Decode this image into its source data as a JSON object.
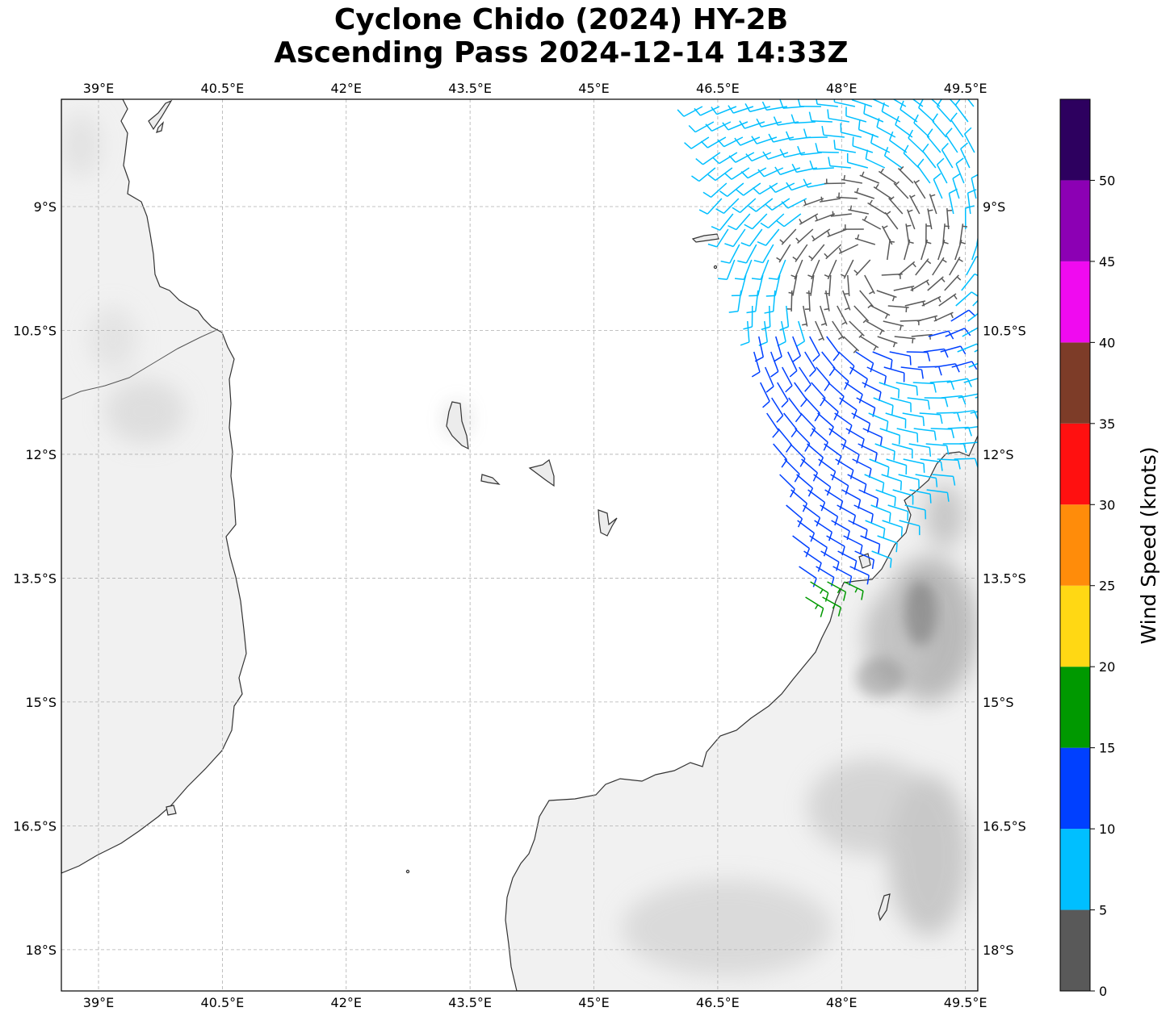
{
  "title": {
    "line1": "Cyclone Chido (2024) HY-2B",
    "line2": "Ascending Pass 2024-12-14 14:33Z"
  },
  "map": {
    "lon_range": [
      38.55,
      49.65
    ],
    "lat_range": [
      -18.5,
      -7.7
    ],
    "lon_ticks": [
      39,
      40.5,
      42,
      43.5,
      45,
      46.5,
      48,
      49.5
    ],
    "lat_ticks": [
      -9,
      -10.5,
      -12,
      -13.5,
      -15,
      -16.5,
      -18
    ],
    "lon_tick_labels": [
      "39°E",
      "40.5°E",
      "42°E",
      "43.5°E",
      "45°E",
      "46.5°E",
      "48°E",
      "49.5°E"
    ],
    "lat_tick_labels": [
      "9°S",
      "10.5°S",
      "12°S",
      "13.5°S",
      "15°S",
      "16.5°S",
      "18°S"
    ],
    "gridlines": true
  },
  "colorbar": {
    "label": "Wind Speed (knots)",
    "ticks": [
      0,
      5,
      10,
      15,
      20,
      25,
      30,
      35,
      40,
      45,
      50
    ],
    "bands": [
      {
        "from": 0,
        "to": 5,
        "color": "#595959"
      },
      {
        "from": 5,
        "to": 10,
        "color": "#00bfff"
      },
      {
        "from": 10,
        "to": 15,
        "color": "#0040ff"
      },
      {
        "from": 15,
        "to": 20,
        "color": "#009900"
      },
      {
        "from": 20,
        "to": 25,
        "color": "#ffd814"
      },
      {
        "from": 25,
        "to": 30,
        "color": "#ff8c0a"
      },
      {
        "from": 30,
        "to": 35,
        "color": "#ff1010"
      },
      {
        "from": 35,
        "to": 40,
        "color": "#7d3c28"
      },
      {
        "from": 40,
        "to": 45,
        "color": "#f00af0"
      },
      {
        "from": 45,
        "to": 50,
        "color": "#8c00b4"
      },
      {
        "from": 50,
        "to": 55,
        "color": "#2d005f"
      }
    ]
  },
  "colors": {
    "coastline": "#333333",
    "land_base": "#f2f2f2",
    "terrain_dark": "#8c8c8c",
    "grid": "#b0b0b0"
  }
}
